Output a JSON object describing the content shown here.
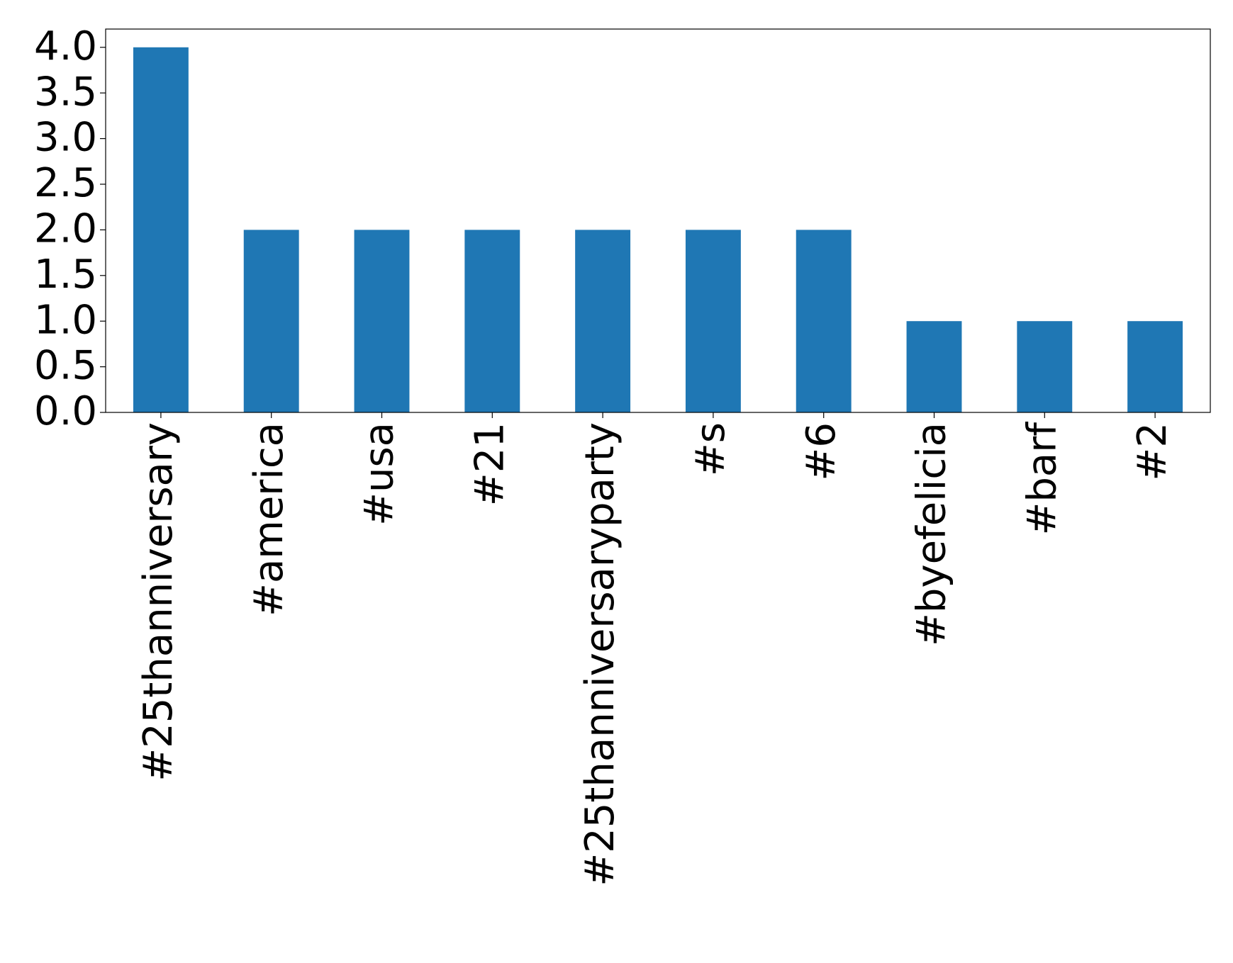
{
  "chart_data": {
    "type": "bar",
    "categories": [
      "#25thanniversary",
      "#america",
      "#usa",
      "#21",
      "#25thanniversaryparty",
      "#s",
      "#6",
      "#byefelicia",
      "#barf",
      "#2"
    ],
    "values": [
      4,
      2,
      2,
      2,
      2,
      2,
      2,
      1,
      1,
      1
    ],
    "color": "#1f77b4",
    "ylim": [
      0,
      4.2
    ],
    "yticks": [
      {
        "value": 0,
        "label": "0.0"
      },
      {
        "value": 0.5,
        "label": "0.5"
      },
      {
        "value": 1,
        "label": "1.0"
      },
      {
        "value": 1.5,
        "label": "1.5"
      },
      {
        "value": 2,
        "label": "2.0"
      },
      {
        "value": 2.5,
        "label": "2.5"
      },
      {
        "value": 3,
        "label": "3.0"
      },
      {
        "value": 3.5,
        "label": "3.5"
      },
      {
        "value": 4,
        "label": "4.0"
      }
    ],
    "grid": false
  }
}
